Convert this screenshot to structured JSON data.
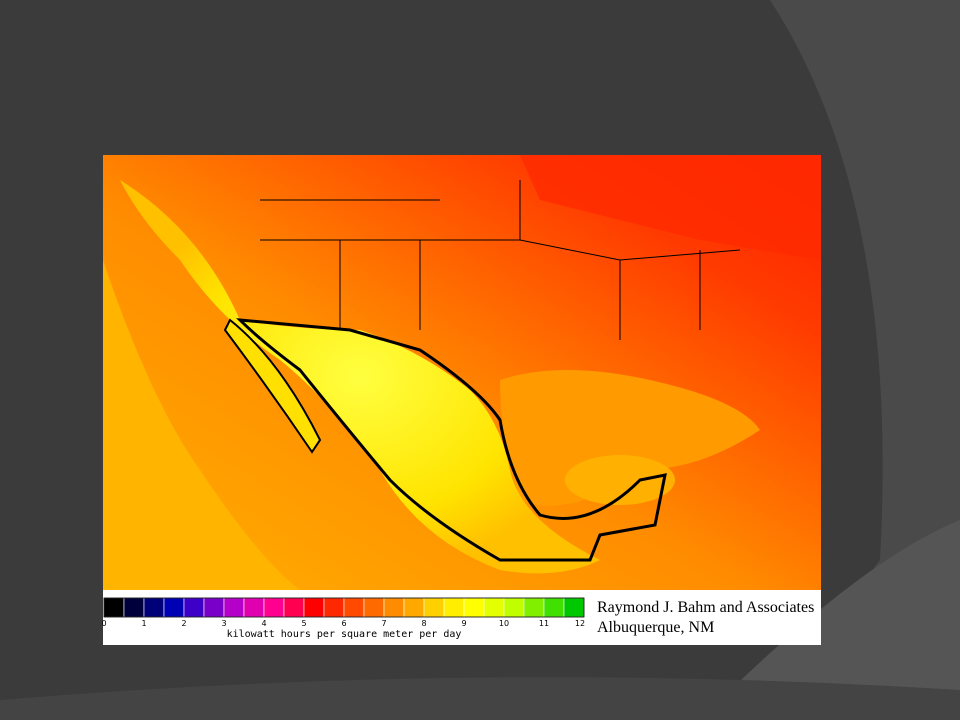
{
  "legend": {
    "ticks": [
      0,
      1,
      2,
      3,
      4,
      5,
      6,
      7,
      8,
      9,
      10,
      11,
      12
    ],
    "unit": "kilowatt hours per square meter per day",
    "colors": [
      "#000000",
      "#00003c",
      "#000078",
      "#0000b4",
      "#3c00c8",
      "#7800c8",
      "#b400c8",
      "#e000b0",
      "#ff0090",
      "#ff0050",
      "#ff0000",
      "#ff2800",
      "#ff4a00",
      "#ff6a00",
      "#ff8c00",
      "#ffa800",
      "#ffd000",
      "#ffee00",
      "#ffff00",
      "#e4ff00",
      "#c0ff00",
      "#80f000",
      "#40e000",
      "#00c800"
    ]
  },
  "credit": {
    "line1": "Raymond J. Bahm and Associates",
    "line2": "Albuquerque, NM"
  }
}
